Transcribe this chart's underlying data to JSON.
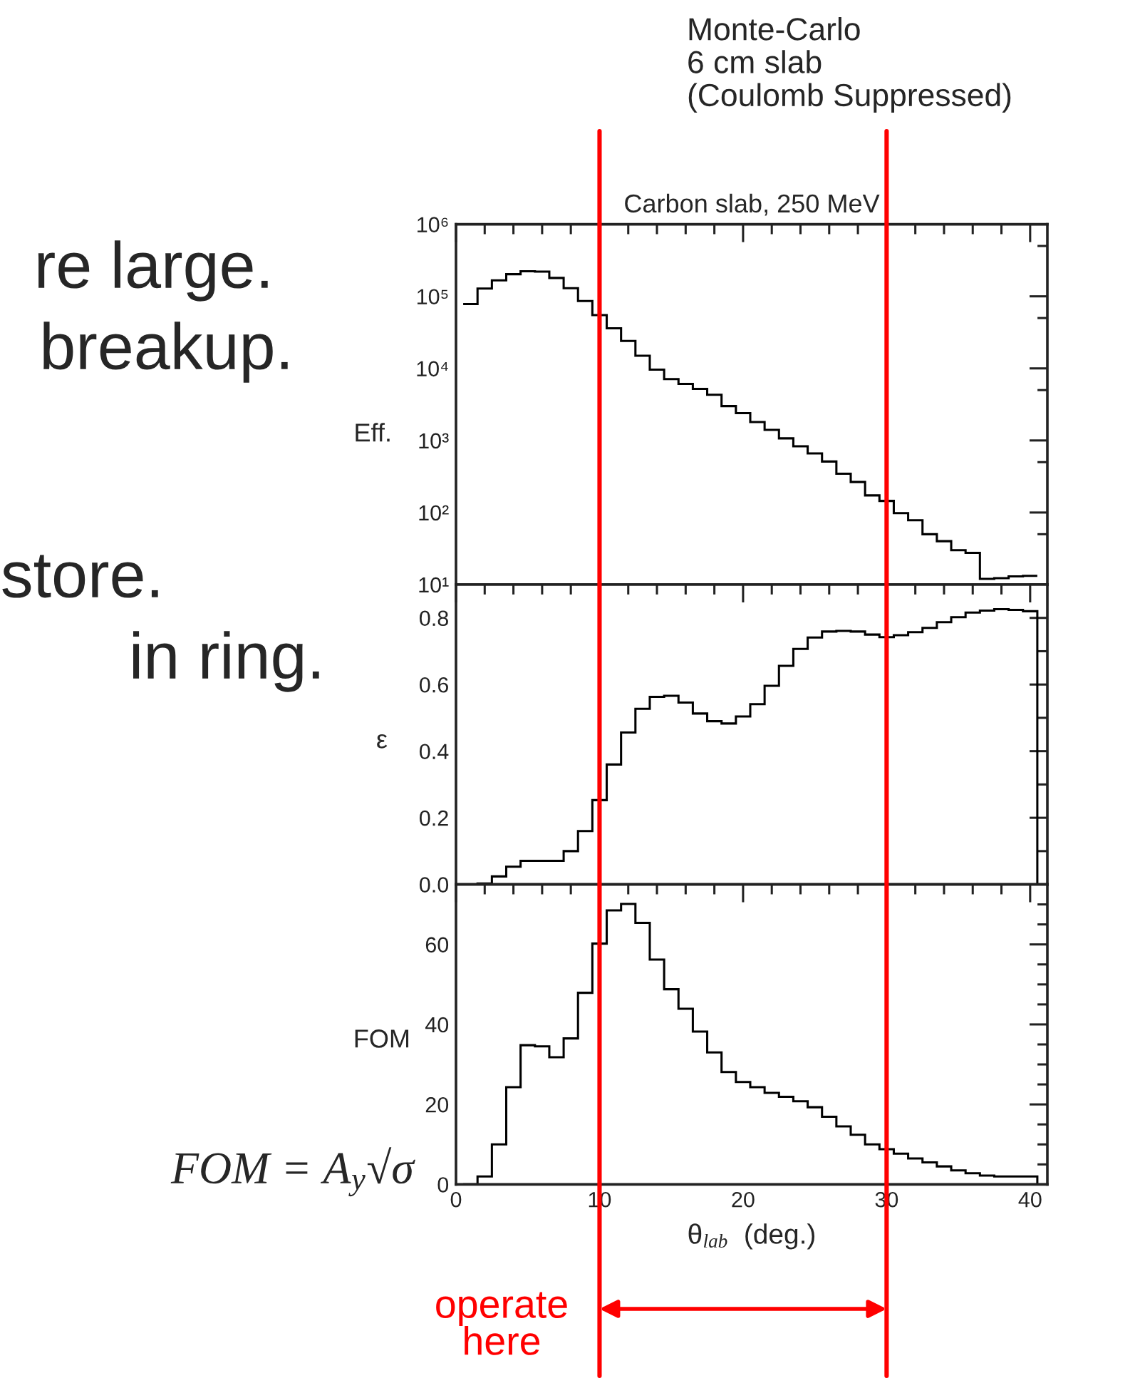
{
  "chart_data": [
    {
      "type": "histogram",
      "title": "Carbon slab, 250 MeV",
      "ylabel": "Eff.",
      "log": "y",
      "bins": [
        0.5,
        1.5,
        2.5,
        3.5,
        4.5,
        5.5,
        6.5,
        7.5,
        8.5,
        9.5,
        10.5,
        11.5,
        12.5,
        13.5,
        14.5,
        15.5,
        16.5,
        17.5,
        18.5,
        19.5,
        20.5,
        21.5,
        22.5,
        23.5,
        24.5,
        25.5,
        26.5,
        27.5,
        28.5,
        29.5,
        30.5,
        31.5,
        32.5,
        33.5,
        34.5,
        35.5,
        36.5,
        37.5,
        38.5,
        39.5,
        40.5
      ],
      "values": [
        78000,
        128000,
        167000,
        203000,
        223000,
        220000,
        180000,
        130000,
        86000,
        55000,
        36000,
        24000,
        15000,
        9600,
        7100,
        6100,
        5200,
        4300,
        3000,
        2400,
        1800,
        1400,
        1070,
        830,
        660,
        510,
        345,
        265,
        173,
        145,
        98,
        78,
        50,
        40,
        30,
        27.5,
        12,
        12.3,
        13,
        13.2
      ],
      "color": "#000000",
      "xlim": [
        0,
        41.2
      ],
      "ylim": [
        10,
        1000000
      ],
      "xticks": [
        0,
        10,
        20,
        30,
        40,
        {
          "value": 2,
          "label": null
        },
        {
          "value": 4,
          "label": null
        },
        {
          "value": 6,
          "label": null
        },
        {
          "value": 8,
          "label": null
        },
        {
          "value": 12,
          "label": null
        },
        {
          "value": 14,
          "label": null
        },
        {
          "value": 16,
          "label": null
        },
        {
          "value": 18,
          "label": null
        },
        {
          "value": 22,
          "label": null
        },
        {
          "value": 24,
          "label": null
        },
        {
          "value": 26,
          "label": null
        },
        {
          "value": 28,
          "label": null
        },
        {
          "value": 32,
          "label": null
        },
        {
          "value": 34,
          "label": null
        },
        {
          "value": 36,
          "label": null
        },
        {
          "value": 38,
          "label": null
        }
      ],
      "yticks": [
        {
          "value": 10,
          "label": "10¹"
        },
        {
          "value": 100,
          "label": "10²"
        },
        {
          "value": 1000,
          "label": "10³"
        },
        {
          "value": 10000,
          "label": "10⁴"
        },
        {
          "value": 100000,
          "label": "10⁵"
        },
        {
          "value": 1000000,
          "label": "10⁶"
        },
        {
          "value": 50,
          "label": null
        },
        {
          "value": 500,
          "label": null
        },
        {
          "value": 5000,
          "label": null
        },
        {
          "value": 50000,
          "label": null
        },
        {
          "value": 500000,
          "label": null
        }
      ],
      "tick_labels": "y",
      "ref_lines": [
        {
          "axis": "x",
          "value": 10,
          "color": "#ff0000"
        },
        {
          "axis": "x",
          "value": 30,
          "color": "#ff0000"
        }
      ],
      "annotations": [
        "Monte-Carlo\n6 cm slab\n(Coulomb Suppressed)",
        "re large.",
        "breakup.",
        "store.",
        "in ring.",
        "FOM = A$_{y}$√σ",
        "operate here"
      ]
    },
    {
      "type": "histogram",
      "ylabel": "ε",
      "bins": [
        0.5,
        1.5,
        2.5,
        3.5,
        4.5,
        5.5,
        6.5,
        7.5,
        8.5,
        9.5,
        10.5,
        11.5,
        12.5,
        13.5,
        14.5,
        15.5,
        16.5,
        17.5,
        18.5,
        19.5,
        20.5,
        21.5,
        22.5,
        23.5,
        24.5,
        25.5,
        26.5,
        27.5,
        28.5,
        29.5,
        30.5,
        31.5,
        32.5,
        33.5,
        34.5,
        35.5,
        36.5,
        37.5,
        38.5,
        39.5,
        40.5
      ],
      "values": [
        0,
        0.003,
        0.024,
        0.053,
        0.071,
        0.071,
        0.071,
        0.1,
        0.16,
        0.253,
        0.36,
        0.456,
        0.527,
        0.563,
        0.566,
        0.546,
        0.513,
        0.49,
        0.483,
        0.504,
        0.541,
        0.596,
        0.656,
        0.707,
        0.741,
        0.759,
        0.761,
        0.759,
        0.75,
        0.742,
        0.748,
        0.757,
        0.77,
        0.787,
        0.802,
        0.816,
        0.822,
        0.826,
        0.824,
        0.82
      ],
      "color": "#000000",
      "xlim": [
        0,
        41.2
      ],
      "ylim": [
        0,
        0.9
      ],
      "xticks": [
        0,
        10,
        20,
        30,
        40,
        {
          "value": 2,
          "label": null
        },
        {
          "value": 4,
          "label": null
        },
        {
          "value": 6,
          "label": null
        },
        {
          "value": 8,
          "label": null
        },
        {
          "value": 12,
          "label": null
        },
        {
          "value": 14,
          "label": null
        },
        {
          "value": 16,
          "label": null
        },
        {
          "value": 18,
          "label": null
        },
        {
          "value": 22,
          "label": null
        },
        {
          "value": 24,
          "label": null
        },
        {
          "value": 26,
          "label": null
        },
        {
          "value": 28,
          "label": null
        },
        {
          "value": 32,
          "label": null
        },
        {
          "value": 34,
          "label": null
        },
        {
          "value": 36,
          "label": null
        },
        {
          "value": 38,
          "label": null
        }
      ],
      "yticks": [
        {
          "value": 0,
          "label": "0.0"
        },
        0.2,
        0.4,
        0.6,
        0.8,
        {
          "value": 0.1,
          "label": null
        },
        {
          "value": 0.3,
          "label": null
        },
        {
          "value": 0.5,
          "label": null
        },
        {
          "value": 0.7,
          "label": null
        }
      ],
      "tick_labels": "y"
    },
    {
      "type": "histogram",
      "ylabel": "FOM",
      "xlabel": "θ$_{lab}$  (deg.)",
      "bins": [
        0.5,
        1.5,
        2.5,
        3.5,
        4.5,
        5.5,
        6.5,
        7.5,
        8.5,
        9.5,
        10.5,
        11.5,
        12.5,
        13.5,
        14.5,
        15.5,
        16.5,
        17.5,
        18.5,
        19.5,
        20.5,
        21.5,
        22.5,
        23.5,
        24.5,
        25.5,
        26.5,
        27.5,
        28.5,
        29.5,
        30.5,
        31.5,
        32.5,
        33.5,
        34.5,
        35.5,
        36.5,
        37.5,
        38.5,
        39.5,
        40.5
      ],
      "values": [
        0,
        2,
        10,
        24.3,
        34.8,
        34.5,
        31.8,
        36.5,
        47.9,
        60.2,
        68.5,
        70.1,
        65.4,
        56.2,
        48.8,
        43.9,
        38.2,
        33,
        28.1,
        25.6,
        24.3,
        22.9,
        21.9,
        20.8,
        19.3,
        16.9,
        14.5,
        12.4,
        10,
        8.8,
        7.7,
        6.5,
        5.5,
        4.5,
        3.5,
        2.8,
        2.2,
        2,
        2,
        2
      ],
      "color": "#000000",
      "xlim": [
        0,
        41.2
      ],
      "ylim": [
        0,
        75
      ],
      "xticks": [
        0,
        10,
        20,
        30,
        40,
        {
          "value": 2,
          "label": null
        },
        {
          "value": 4,
          "label": null
        },
        {
          "value": 6,
          "label": null
        },
        {
          "value": 8,
          "label": null
        },
        {
          "value": 12,
          "label": null
        },
        {
          "value": 14,
          "label": null
        },
        {
          "value": 16,
          "label": null
        },
        {
          "value": 18,
          "label": null
        },
        {
          "value": 22,
          "label": null
        },
        {
          "value": 24,
          "label": null
        },
        {
          "value": 26,
          "label": null
        },
        {
          "value": 28,
          "label": null
        },
        {
          "value": 32,
          "label": null
        },
        {
          "value": 34,
          "label": null
        },
        {
          "value": 36,
          "label": null
        },
        {
          "value": 38,
          "label": null
        }
      ],
      "yticks": [
        0,
        20,
        40,
        60,
        {
          "value": 5,
          "label": null
        },
        {
          "value": 10,
          "label": null
        },
        {
          "value": 15,
          "label": null
        },
        {
          "value": 25,
          "label": null
        },
        {
          "value": 30,
          "label": null
        },
        {
          "value": 35,
          "label": null
        },
        {
          "value": 45,
          "label": null
        },
        {
          "value": 50,
          "label": null
        },
        {
          "value": 55,
          "label": null
        },
        {
          "value": 65,
          "label": null
        },
        {
          "value": 70,
          "label": null
        }
      ]
    }
  ]
}
